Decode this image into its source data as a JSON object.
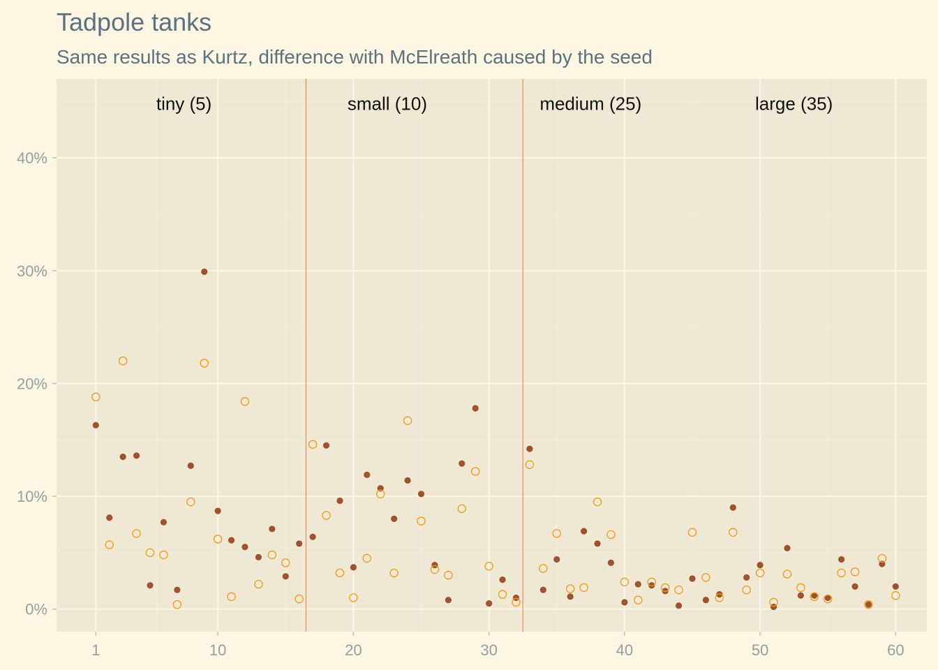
{
  "chart_data": {
    "type": "scatter",
    "title": "Tadpole tanks",
    "subtitle": "Same results as Kurtz, difference with McElreath caused by the seed",
    "xlabel": "",
    "ylabel": "",
    "xlim": [
      -1.9,
      62.3
    ],
    "ylim": [
      -2.0,
      47.0
    ],
    "x_ticks": [
      1,
      10,
      20,
      30,
      40,
      50,
      60
    ],
    "y_ticks": [
      0,
      10,
      20,
      30,
      40
    ],
    "y_tick_labels": [
      "0%",
      "10%",
      "20%",
      "30%",
      "40%"
    ],
    "grid": true,
    "legend": "none",
    "vlines": [
      16.5,
      32.5
    ],
    "sections": [
      {
        "label": "tiny (5)",
        "x": 7.5,
        "y": 44.8
      },
      {
        "label": "small (10)",
        "x": 22.5,
        "y": 44.8
      },
      {
        "label": "medium (25)",
        "x": 37.5,
        "y": 44.8
      },
      {
        "label": "large (35)",
        "x": 52.5,
        "y": 44.8
      }
    ],
    "series": [
      {
        "marker": "filled",
        "color": "#a0522d",
        "points": [
          [
            1,
            16.3
          ],
          [
            2,
            8.1
          ],
          [
            3,
            13.5
          ],
          [
            4,
            13.6
          ],
          [
            5,
            2.1
          ],
          [
            6,
            7.7
          ],
          [
            7,
            1.7
          ],
          [
            8,
            12.7
          ],
          [
            9,
            29.9
          ],
          [
            10,
            8.7
          ],
          [
            11,
            6.1
          ],
          [
            12,
            5.5
          ],
          [
            13,
            4.6
          ],
          [
            14,
            7.1
          ],
          [
            15,
            2.9
          ],
          [
            16,
            5.8
          ],
          [
            17,
            6.4
          ],
          [
            18,
            14.5
          ],
          [
            19,
            9.6
          ],
          [
            20,
            3.7
          ],
          [
            21,
            11.9
          ],
          [
            22,
            10.7
          ],
          [
            23,
            8.0
          ],
          [
            24,
            11.4
          ],
          [
            25,
            10.2
          ],
          [
            26,
            3.9
          ],
          [
            27,
            0.8
          ],
          [
            28,
            12.9
          ],
          [
            29,
            17.8
          ],
          [
            30,
            0.5
          ],
          [
            31,
            2.6
          ],
          [
            32,
            1.0
          ],
          [
            33,
            14.2
          ],
          [
            34,
            1.7
          ],
          [
            35,
            4.4
          ],
          [
            36,
            1.1
          ],
          [
            37,
            6.9
          ],
          [
            38,
            5.8
          ],
          [
            39,
            4.1
          ],
          [
            40,
            0.6
          ],
          [
            41,
            2.2
          ],
          [
            42,
            2.1
          ],
          [
            43,
            1.6
          ],
          [
            44,
            0.3
          ],
          [
            45,
            2.7
          ],
          [
            46,
            0.8
          ],
          [
            47,
            1.3
          ],
          [
            48,
            9.0
          ],
          [
            49,
            2.8
          ],
          [
            50,
            3.9
          ],
          [
            51,
            0.2
          ],
          [
            52,
            5.4
          ],
          [
            53,
            1.2
          ],
          [
            54,
            1.2
          ],
          [
            55,
            1.0
          ],
          [
            56,
            4.4
          ],
          [
            57,
            2.0
          ],
          [
            58,
            0.4
          ],
          [
            59,
            4.0
          ],
          [
            60,
            2.0
          ]
        ]
      },
      {
        "marker": "open",
        "color": "#f39c12",
        "points": [
          [
            1,
            18.8
          ],
          [
            2,
            5.7
          ],
          [
            3,
            22.0
          ],
          [
            4,
            6.7
          ],
          [
            5,
            5.0
          ],
          [
            6,
            4.8
          ],
          [
            7,
            0.4
          ],
          [
            8,
            9.5
          ],
          [
            9,
            21.8
          ],
          [
            10,
            6.2
          ],
          [
            11,
            1.1
          ],
          [
            12,
            18.4
          ],
          [
            13,
            2.2
          ],
          [
            14,
            4.8
          ],
          [
            15,
            4.1
          ],
          [
            16,
            0.9
          ],
          [
            17,
            14.6
          ],
          [
            18,
            8.3
          ],
          [
            19,
            3.2
          ],
          [
            20,
            1.0
          ],
          [
            21,
            4.5
          ],
          [
            22,
            10.2
          ],
          [
            23,
            3.2
          ],
          [
            24,
            16.7
          ],
          [
            25,
            7.8
          ],
          [
            26,
            3.5
          ],
          [
            27,
            3.0
          ],
          [
            28,
            8.9
          ],
          [
            29,
            12.2
          ],
          [
            30,
            3.8
          ],
          [
            31,
            1.3
          ],
          [
            32,
            0.6
          ],
          [
            33,
            12.8
          ],
          [
            34,
            3.6
          ],
          [
            35,
            6.7
          ],
          [
            36,
            1.8
          ],
          [
            37,
            1.9
          ],
          [
            38,
            9.5
          ],
          [
            39,
            6.6
          ],
          [
            40,
            2.4
          ],
          [
            41,
            0.8
          ],
          [
            42,
            2.4
          ],
          [
            43,
            1.9
          ],
          [
            44,
            1.7
          ],
          [
            45,
            6.8
          ],
          [
            46,
            2.8
          ],
          [
            47,
            1.0
          ],
          [
            48,
            6.8
          ],
          [
            49,
            1.7
          ],
          [
            50,
            3.2
          ],
          [
            51,
            0.6
          ],
          [
            52,
            3.1
          ],
          [
            53,
            1.9
          ],
          [
            54,
            1.1
          ],
          [
            55,
            0.9
          ],
          [
            56,
            3.2
          ],
          [
            57,
            3.3
          ],
          [
            58,
            0.4
          ],
          [
            59,
            4.5
          ],
          [
            60,
            1.2
          ]
        ]
      }
    ]
  },
  "colors": {
    "background": "#fdf6e3",
    "panel": "#eee8d5",
    "grid": "#fdf6e3",
    "vline": "#e8784a",
    "filled_point": "#a0522d",
    "open_point": "#f39c12",
    "text_muted": "#93a1a1",
    "title": "#5b7280"
  }
}
